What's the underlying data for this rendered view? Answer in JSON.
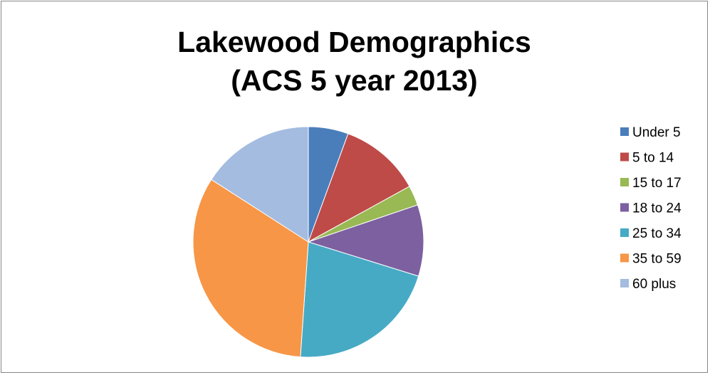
{
  "chart_data": {
    "type": "pie",
    "title_lines": [
      "Lakewood Demographics",
      "(ACS 5 year 2013)"
    ],
    "categories": [
      "Under 5",
      "5 to 14",
      "15 to 17",
      "18 to 24",
      "25 to 34",
      "35 to 59",
      "60 plus"
    ],
    "values": [
      5.6,
      11.4,
      2.8,
      10.0,
      21.3,
      33.0,
      15.9
    ],
    "colors": [
      "#4A7EBB",
      "#BE4B48",
      "#98B954",
      "#7D60A0",
      "#46AAC5",
      "#F79646",
      "#A4BCE0"
    ],
    "legend": "right",
    "start_angle": "12 o'clock",
    "direction": "clockwise"
  }
}
